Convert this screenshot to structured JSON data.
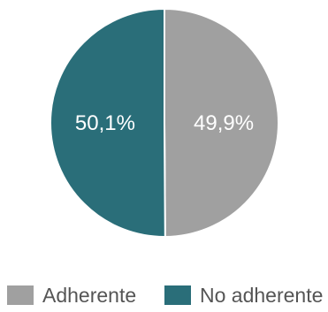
{
  "chart_data": {
    "type": "pie",
    "categories": [
      "Adherente",
      "No adherente"
    ],
    "values": [
      49.9,
      50.1
    ],
    "data_labels": [
      "49,9%",
      "50,1%"
    ],
    "colors": [
      "#a0a0a0",
      "#2a6e79"
    ],
    "legend_position": "bottom"
  }
}
